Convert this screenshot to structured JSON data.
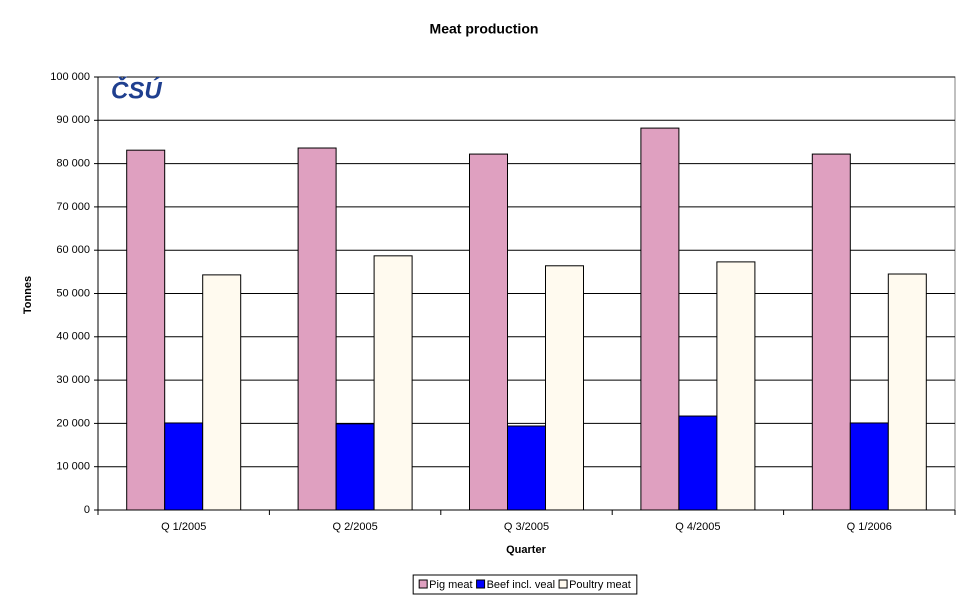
{
  "chart_data": {
    "type": "bar",
    "title": "Meat production",
    "logo": "ČSÚ",
    "x_label": "Quarter",
    "y_label": "Tonnes",
    "categories": [
      "Q 1/2005",
      "Q 2/2005",
      "Q 3/2005",
      "Q 4/2005",
      "Q 1/2006"
    ],
    "series": [
      {
        "name": "Pig meat",
        "color": "#dfa0c0",
        "values": [
          83100,
          83600,
          82200,
          88200,
          82200
        ]
      },
      {
        "name": "Beef incl. veal",
        "color": "#0000ff",
        "values": [
          20100,
          19900,
          19400,
          21700,
          20100
        ]
      },
      {
        "name": "Poultry meat",
        "color": "#fffaef",
        "values": [
          54300,
          58700,
          56400,
          57300,
          54500
        ]
      }
    ],
    "ylim": [
      0,
      100000
    ],
    "yticks": [
      0,
      {
        "value": 10000,
        "label": "10 000"
      },
      {
        "value": 20000,
        "label": "20 000"
      },
      {
        "value": 30000,
        "label": "30 000"
      },
      {
        "value": 40000,
        "label": "40 000"
      },
      {
        "value": 50000,
        "label": "50 000"
      },
      {
        "value": 60000,
        "label": "60 000"
      },
      {
        "value": 70000,
        "label": "70 000"
      },
      {
        "value": 80000,
        "label": "80 000"
      },
      {
        "value": 90000,
        "label": "90 000"
      },
      {
        "value": 100000,
        "label": "100 000"
      }
    ],
    "grid": true,
    "legend": "bottom"
  }
}
